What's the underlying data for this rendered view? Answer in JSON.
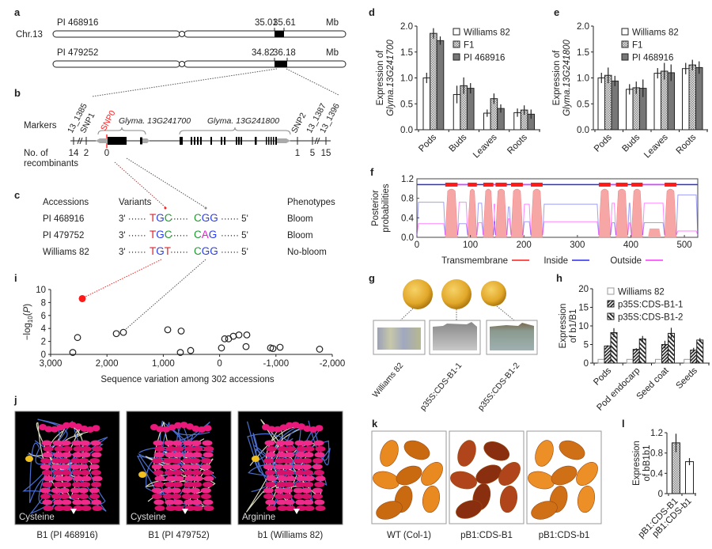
{
  "figure": {
    "a": {
      "label": "a",
      "chromosome": "Chr.13",
      "rows": [
        {
          "accession": "PI 468916",
          "start": "35.01",
          "end": "35.61",
          "unit": "Mb"
        },
        {
          "accession": "PI 479252",
          "start": "34.82",
          "end": "36.18",
          "unit": "Mb"
        }
      ]
    },
    "b": {
      "label": "b",
      "markers_label": "Markers",
      "recomb_label_1": "No. of",
      "recomb_label_2": "recombinants",
      "markers": [
        {
          "name": "13_1385",
          "count": "14"
        },
        {
          "name": "SNP1",
          "count": "2"
        },
        {
          "name": "SNP0",
          "count": "0"
        },
        {
          "name": "SNP2",
          "count": "1"
        },
        {
          "name": "13_1387",
          "count": "5"
        },
        {
          "name": "13_1396",
          "count": "15"
        }
      ],
      "genes": [
        "Glyma. 13G241700",
        "Glyma. 13G241800"
      ]
    },
    "c": {
      "label": "c",
      "headers": {
        "accessions": "Accessions",
        "variants": "Variants",
        "phenotypes": "Phenotypes"
      },
      "prefix": "3' ······",
      "middle": "······",
      "suffix": "······ 5'",
      "rows": [
        {
          "accession": "PI 468916",
          "codon1": [
            "T",
            "G",
            "C"
          ],
          "codon2": [
            "C",
            "G",
            "G"
          ],
          "phenotype": "Bloom"
        },
        {
          "accession": "PI 479752",
          "codon1": [
            "T",
            "G",
            "C"
          ],
          "codon2": [
            "C",
            "A",
            "G"
          ],
          "phenotype": "Bloom"
        },
        {
          "accession": "Williams 82",
          "codon1": [
            "T",
            "G",
            "T"
          ],
          "codon2": [
            "C",
            "G",
            "G"
          ],
          "phenotype": "No-bloom"
        }
      ],
      "base_colors": {
        "T": "#e8202a",
        "G": "#2a3cf0",
        "C": "#1e9a2e",
        "A": "#e020d0"
      }
    },
    "g": {
      "label": "g",
      "lines": [
        "Williams 82",
        "p35S:CDS-B1-1",
        "p35S:CDS-B1-2"
      ]
    },
    "j": {
      "label": "j",
      "structures": [
        {
          "residue": "Cysteine",
          "caption": "B1 (PI 468916)"
        },
        {
          "residue": "Cysteine",
          "caption": "B1 (PI 479752)"
        },
        {
          "residue": "Arginine",
          "caption": "b1 (Williams 82)"
        }
      ]
    },
    "k": {
      "label": "k",
      "captions": [
        "WT (Col-1)",
        "pB1:CDS-B1",
        "pB1:CDS-b1"
      ]
    }
  },
  "chart_data": [
    {
      "panel": "d",
      "type": "bar",
      "categories": [
        "Pods",
        "Buds",
        "Leaves",
        "Roots"
      ],
      "ylabel": [
        "Expression of",
        "Glyma.13G241700"
      ],
      "ylim": [
        0,
        2.0
      ],
      "yticks": [
        "0.0",
        "0.5",
        "1.0",
        "1.5",
        "2.0"
      ],
      "series": [
        {
          "name": "Williams 82",
          "fill": "white",
          "values": [
            1.0,
            0.68,
            0.32,
            0.33
          ],
          "errors": [
            0.1,
            0.17,
            0.07,
            0.08
          ]
        },
        {
          "name": "F1",
          "fill": "checker",
          "values": [
            1.86,
            0.85,
            0.6,
            0.38
          ],
          "errors": [
            0.1,
            0.16,
            0.1,
            0.09
          ]
        },
        {
          "name": "PI 468916",
          "fill": "dark",
          "values": [
            1.72,
            0.8,
            0.41,
            0.3
          ],
          "errors": [
            0.08,
            0.1,
            0.08,
            0.09
          ]
        }
      ],
      "legend": "top-right"
    },
    {
      "panel": "e",
      "type": "bar",
      "categories": [
        "Pods",
        "Buds",
        "Leaves",
        "Roots"
      ],
      "ylabel": [
        "Expression of",
        "Glyma.13G241800"
      ],
      "ylim": [
        0,
        2.0
      ],
      "yticks": [
        "0.0",
        "0.5",
        "1.0",
        "1.5",
        "2.0"
      ],
      "series": [
        {
          "name": "Williams 82",
          "fill": "white",
          "values": [
            1.0,
            0.78,
            1.09,
            1.18
          ],
          "errors": [
            0.1,
            0.1,
            0.1,
            0.11
          ]
        },
        {
          "name": "F1",
          "fill": "checker",
          "values": [
            1.05,
            0.81,
            1.13,
            1.25
          ],
          "errors": [
            0.15,
            0.12,
            0.16,
            0.1
          ]
        },
        {
          "name": "PI 468916",
          "fill": "dark",
          "values": [
            0.94,
            0.8,
            1.1,
            1.2
          ],
          "errors": [
            0.1,
            0.17,
            0.16,
            0.12
          ]
        }
      ],
      "legend": "top-right"
    },
    {
      "panel": "f",
      "type": "line",
      "ylabel": [
        "Posterior",
        "probabilities"
      ],
      "xlim": [
        0,
        525
      ],
      "ylim": [
        0,
        1.2
      ],
      "xticks": [
        0,
        100,
        200,
        300,
        400,
        500
      ],
      "yticks": [
        "0.0",
        "0.4",
        "0.8",
        "1.2"
      ],
      "transmembrane_regions": [
        [
          53,
          76
        ],
        [
          95,
          112
        ],
        [
          124,
          143
        ],
        [
          147,
          168
        ],
        [
          176,
          198
        ],
        [
          213,
          235
        ],
        [
          340,
          362
        ],
        [
          372,
          394
        ],
        [
          401,
          422
        ],
        [
          463,
          485
        ]
      ],
      "weak_region": [
        432,
        456,
        0.18
      ],
      "inside_regions": [
        [
          0,
          53,
          0.72
        ],
        [
          112,
          124,
          0.7
        ],
        [
          168,
          176,
          0.62
        ],
        [
          235,
          340,
          0.68
        ],
        [
          394,
          401,
          0.7
        ],
        [
          485,
          525,
          0.87
        ]
      ],
      "outside_regions": [
        [
          76,
          95,
          0.72
        ],
        [
          143,
          147,
          0.68
        ],
        [
          198,
          213,
          0.68
        ],
        [
          362,
          372,
          0.7
        ],
        [
          422,
          463,
          0.7
        ]
      ],
      "series": [
        {
          "name": "Transmembrane",
          "color": "#ff1a1a"
        },
        {
          "name": "Inside",
          "color": "#2a2af0"
        },
        {
          "name": "Outside",
          "color": "#ff33ff"
        }
      ],
      "legend": "bottom"
    },
    {
      "panel": "h",
      "type": "bar",
      "categories": [
        "Pods",
        "Pod endocarp",
        "Seed coat",
        "Seeds"
      ],
      "ylabel": [
        "Expression",
        "of b1/B1"
      ],
      "ylim": [
        0,
        20
      ],
      "yticks": [
        "0",
        "5",
        "10",
        "15",
        "20"
      ],
      "series": [
        {
          "name": "Williams 82",
          "fill": "white-light",
          "values": [
            1.0,
            1.0,
            1.0,
            1.0
          ],
          "errors": [
            0,
            0,
            0,
            0
          ]
        },
        {
          "name": "p35S:CDS-B1-1",
          "fill": "hatch1",
          "values": [
            4.6,
            3.7,
            5.0,
            3.5
          ],
          "errors": [
            0.2,
            0.3,
            1.0,
            0.6
          ]
        },
        {
          "name": "p35S:CDS-B1-2",
          "fill": "hatch2",
          "values": [
            8.2,
            6.5,
            8.0,
            6.2
          ],
          "errors": [
            1.2,
            0.8,
            1.5,
            0.5
          ]
        }
      ],
      "legend": "top-right"
    },
    {
      "panel": "i",
      "type": "scatter",
      "xlabel": "Sequence variation among 302 accessions",
      "ylabel": "-log10(P)",
      "xlim": [
        3000,
        -2000
      ],
      "ylim": [
        0,
        10
      ],
      "xticks": [
        "3,000",
        "2,000",
        "1,000",
        "0",
        "-1,000",
        "-2,000"
      ],
      "yticks": [
        "0",
        "2",
        "4",
        "6",
        "8",
        "10"
      ],
      "points": [
        {
          "x": 2607,
          "y": 0.3
        },
        {
          "x": 2522,
          "y": 2.6
        },
        {
          "x": 2438,
          "y": 8.6,
          "highlight": true
        },
        {
          "x": 1834,
          "y": 3.2
        },
        {
          "x": 1708,
          "y": 3.4
        },
        {
          "x": 921,
          "y": 3.8
        },
        {
          "x": 683,
          "y": 3.6
        },
        {
          "x": 697,
          "y": 0.3
        },
        {
          "x": 514,
          "y": 0.6
        },
        {
          "x": -33,
          "y": 1.0
        },
        {
          "x": -90,
          "y": 2.4
        },
        {
          "x": -160,
          "y": 2.4
        },
        {
          "x": -244,
          "y": 2.8
        },
        {
          "x": -343,
          "y": 3.0
        },
        {
          "x": -483,
          "y": 3.0
        },
        {
          "x": -469,
          "y": 1.2
        },
        {
          "x": -904,
          "y": 1.0
        },
        {
          "x": -947,
          "y": 0.9
        },
        {
          "x": -1073,
          "y": 1.1
        },
        {
          "x": -1775,
          "y": 0.8
        }
      ],
      "highlight_color": "#ff1a1a"
    },
    {
      "panel": "l",
      "type": "bar",
      "categories": [
        "pB1:CDS-B1",
        "pB1:CDS-b1"
      ],
      "ylabel": [
        "Expression",
        "of bB1b1"
      ],
      "ylim": [
        0,
        1.2
      ],
      "yticks": [
        "0",
        "0.4",
        "0.8",
        "1.2"
      ],
      "bar_fills": [
        "checker",
        "white"
      ],
      "series": [
        {
          "values": [
            1.0,
            0.63
          ],
          "errors": [
            0.18,
            0.07
          ]
        }
      ]
    }
  ]
}
